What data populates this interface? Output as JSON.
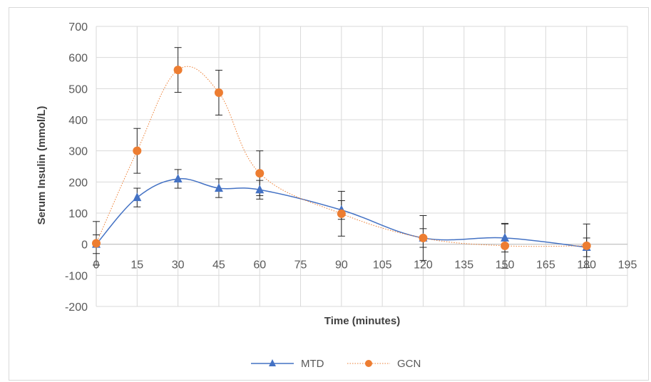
{
  "chart_data": {
    "type": "line",
    "title": "",
    "xlabel": "Time (minutes)",
    "ylabel": "Serum Insulin (mmol/L)",
    "xlim": [
      0,
      195
    ],
    "ylim": [
      -200,
      700
    ],
    "x_ticks": [
      0,
      15,
      30,
      45,
      60,
      75,
      90,
      105,
      120,
      135,
      150,
      165,
      180,
      195
    ],
    "y_ticks": [
      -200,
      -100,
      0,
      100,
      200,
      300,
      400,
      500,
      600,
      700
    ],
    "grid": true,
    "legend_position": "bottom",
    "x": [
      0,
      15,
      30,
      45,
      60,
      90,
      120,
      150,
      180
    ],
    "series": [
      {
        "name": "MTD",
        "marker": "triangle",
        "line_style": "solid",
        "color": "#4472c4",
        "values": [
          0,
          150,
          210,
          180,
          175,
          110,
          20,
          20,
          -10
        ],
        "error": [
          30,
          30,
          30,
          30,
          30,
          30,
          30,
          45,
          30
        ]
      },
      {
        "name": "GCN",
        "marker": "circle",
        "line_style": "dotted",
        "color": "#ed7d31",
        "values": [
          3,
          300,
          560,
          487,
          228,
          98,
          20,
          -5,
          -5
        ],
        "error": [
          70,
          72,
          72,
          72,
          72,
          72,
          72,
          72,
          70
        ]
      }
    ]
  }
}
